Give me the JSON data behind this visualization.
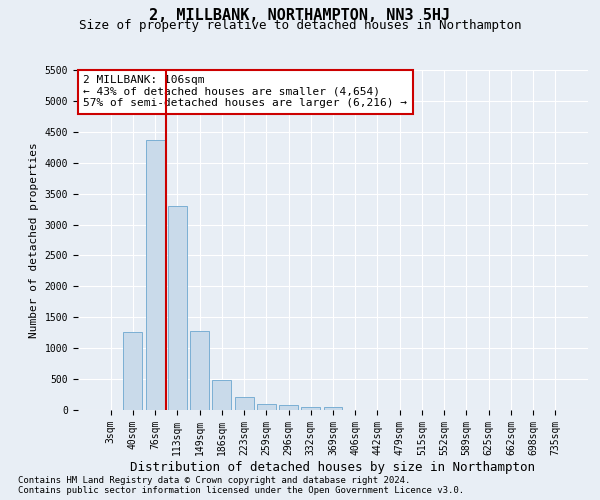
{
  "title": "2, MILLBANK, NORTHAMPTON, NN3 5HJ",
  "subtitle": "Size of property relative to detached houses in Northampton",
  "xlabel": "Distribution of detached houses by size in Northampton",
  "ylabel": "Number of detached properties",
  "footnote1": "Contains HM Land Registry data © Crown copyright and database right 2024.",
  "footnote2": "Contains public sector information licensed under the Open Government Licence v3.0.",
  "bar_labels": [
    "3sqm",
    "40sqm",
    "76sqm",
    "113sqm",
    "149sqm",
    "186sqm",
    "223sqm",
    "259sqm",
    "296sqm",
    "332sqm",
    "369sqm",
    "406sqm",
    "442sqm",
    "479sqm",
    "515sqm",
    "552sqm",
    "589sqm",
    "625sqm",
    "662sqm",
    "698sqm",
    "735sqm"
  ],
  "bar_values": [
    0,
    1260,
    4370,
    3300,
    1270,
    490,
    215,
    95,
    75,
    55,
    55,
    0,
    0,
    0,
    0,
    0,
    0,
    0,
    0,
    0,
    0
  ],
  "bar_color": "#c9daea",
  "bar_edgecolor": "#7bafd4",
  "background_color": "#e8eef5",
  "grid_color": "#ffffff",
  "ylim": [
    0,
    5500
  ],
  "yticks": [
    0,
    500,
    1000,
    1500,
    2000,
    2500,
    3000,
    3500,
    4000,
    4500,
    5000,
    5500
  ],
  "vline_color": "#cc0000",
  "vline_pos": 2.5,
  "annotation_text": "2 MILLBANK: 106sqm\n← 43% of detached houses are smaller (4,654)\n57% of semi-detached houses are larger (6,216) →",
  "annotation_box_color": "#ffffff",
  "annotation_box_edgecolor": "#cc0000",
  "title_fontsize": 11,
  "subtitle_fontsize": 9,
  "xlabel_fontsize": 9,
  "ylabel_fontsize": 8,
  "tick_fontsize": 7,
  "annotation_fontsize": 8,
  "footnote_fontsize": 6.5
}
